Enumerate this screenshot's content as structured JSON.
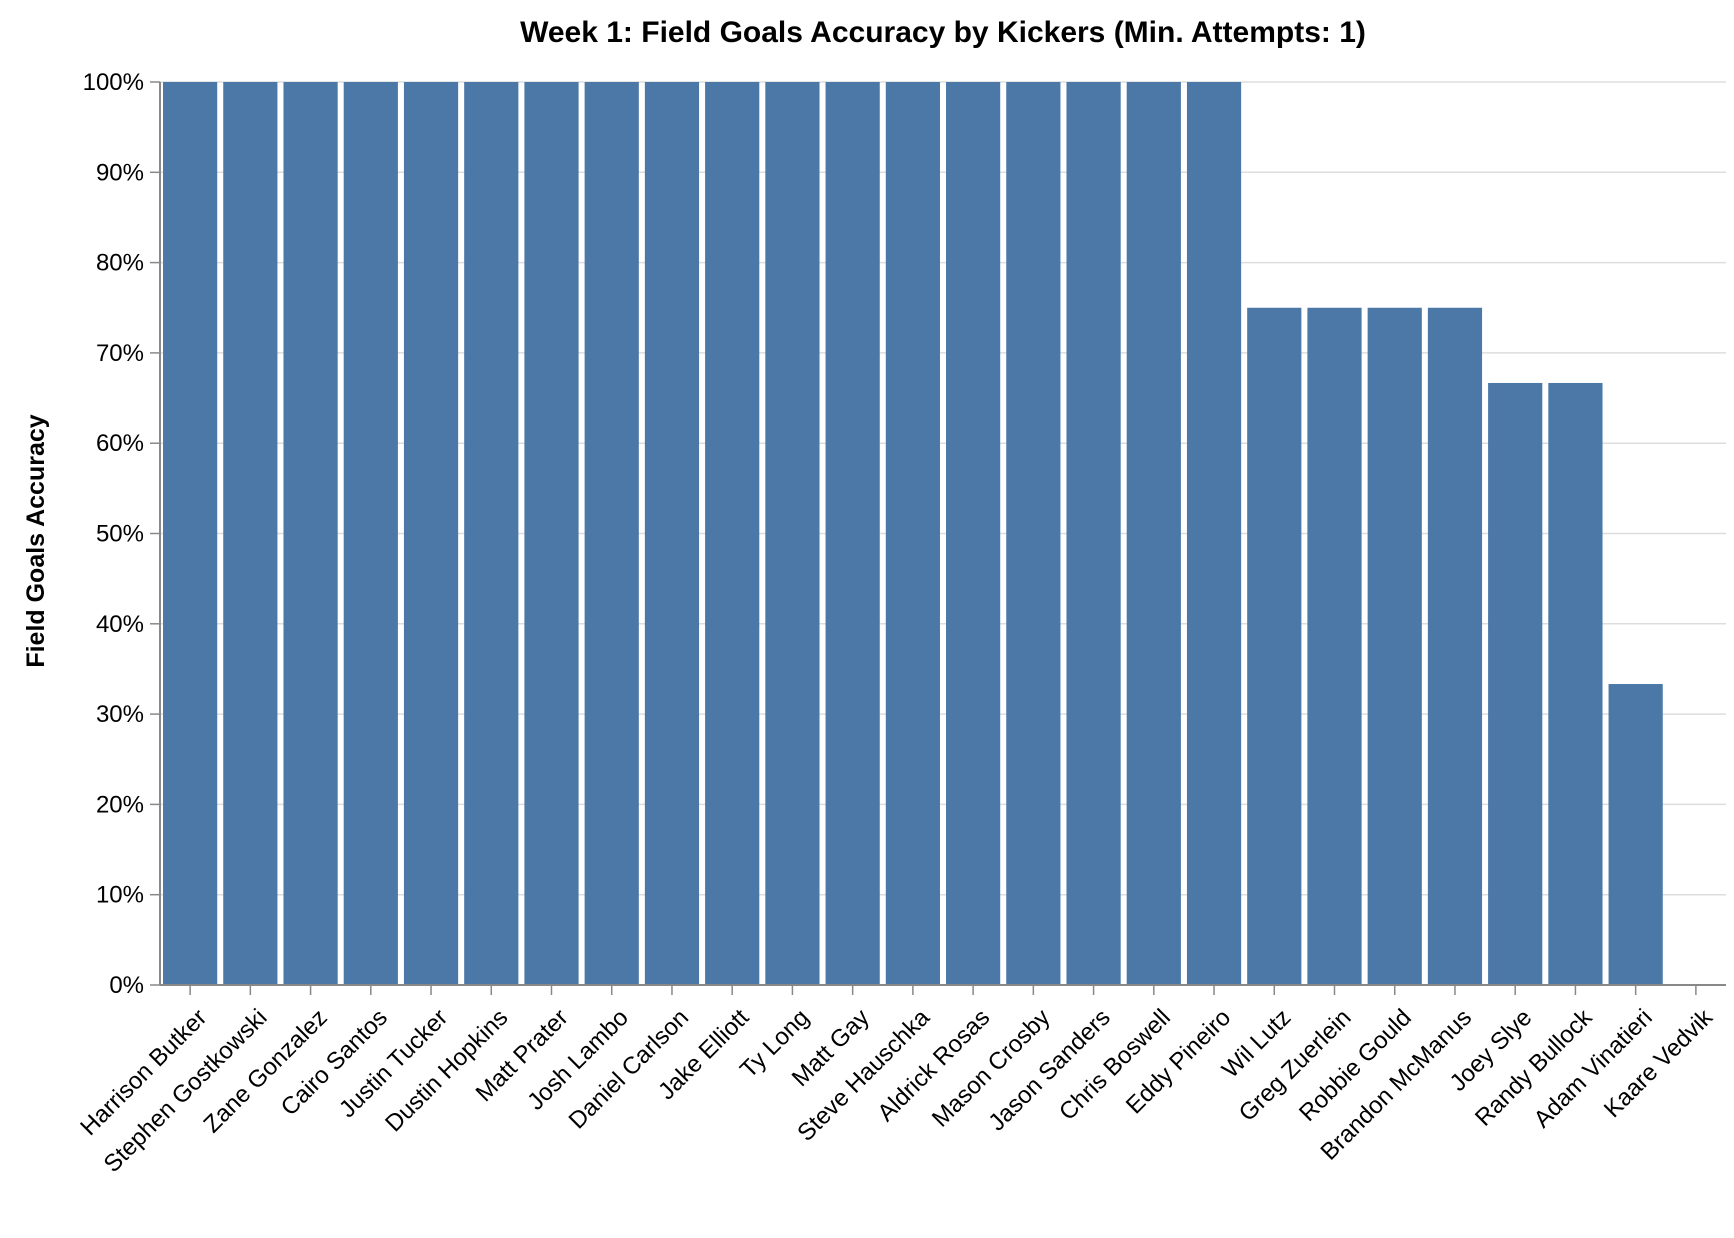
{
  "chart_data": {
    "type": "bar",
    "title": "Week 1: Field Goals Accuracy by Kickers (Min. Attempts: 1)",
    "xlabel": "",
    "ylabel": "Field Goals Accuracy",
    "ylim": [
      0,
      1
    ],
    "y_format": "percent",
    "y_ticks": [
      "0%",
      "10%",
      "20%",
      "30%",
      "40%",
      "50%",
      "60%",
      "70%",
      "80%",
      "90%",
      "100%"
    ],
    "grid": true,
    "bar_color": "#4c78a8",
    "categories": [
      "Harrison Butker",
      "Stephen Gostkowski",
      "Zane Gonzalez",
      "Cairo Santos",
      "Justin Tucker",
      "Dustin Hopkins",
      "Matt Prater",
      "Josh Lambo",
      "Daniel Carlson",
      "Jake Elliott",
      "Ty Long",
      "Matt Gay",
      "Steve Hauschka",
      "Aldrick Rosas",
      "Mason Crosby",
      "Jason Sanders",
      "Chris Boswell",
      "Eddy Pineiro",
      "Wil Lutz",
      "Greg Zuerlein",
      "Robbie Gould",
      "Brandon McManus",
      "Joey Slye",
      "Randy Bullock",
      "Adam Vinatieri",
      "Kaare Vedvik"
    ],
    "values": [
      1,
      1,
      1,
      1,
      1,
      1,
      1,
      1,
      1,
      1,
      1,
      1,
      1,
      1,
      1,
      1,
      1,
      1,
      0.75,
      0.75,
      0.75,
      0.75,
      0.6667,
      0.6667,
      0.3333,
      0
    ]
  }
}
